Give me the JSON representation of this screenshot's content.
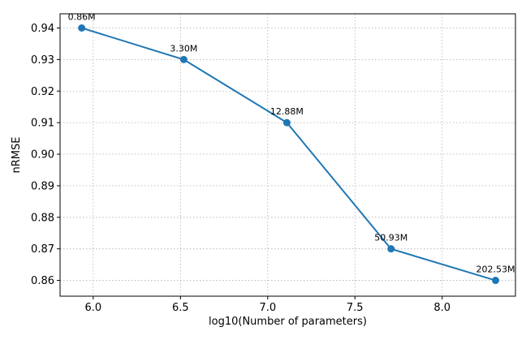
{
  "chart_data": {
    "type": "line",
    "title": "",
    "xlabel": "log10(Number of parameters)",
    "ylabel": "nRMSE",
    "xlim": [
      5.81,
      8.42
    ],
    "ylim": [
      0.855,
      0.9445
    ],
    "xticks": [
      6.0,
      6.5,
      7.0,
      7.5,
      8.0
    ],
    "xtick_labels": [
      "6.0",
      "6.5",
      "7.0",
      "7.5",
      "8.0"
    ],
    "yticks": [
      0.86,
      0.87,
      0.88,
      0.89,
      0.9,
      0.91,
      0.92,
      0.93,
      0.94
    ],
    "ytick_labels": [
      "0.86",
      "0.87",
      "0.88",
      "0.89",
      "0.90",
      "0.91",
      "0.92",
      "0.93",
      "0.94"
    ],
    "grid": true,
    "legend": false,
    "color": "#1f77b4",
    "x": [
      5.934,
      6.519,
      7.11,
      7.707,
      8.306
    ],
    "y": [
      0.94,
      0.93,
      0.91,
      0.87,
      0.86
    ],
    "point_labels": [
      "0.86M",
      "3.30M",
      "12.88M",
      "50.93M",
      "202.53M"
    ]
  }
}
